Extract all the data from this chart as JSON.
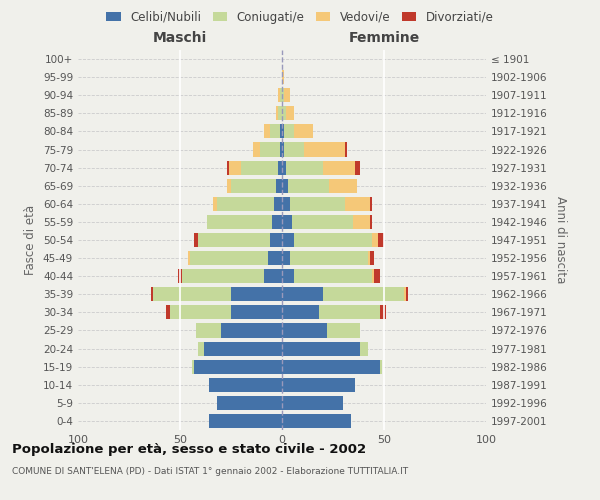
{
  "age_groups": [
    "0-4",
    "5-9",
    "10-14",
    "15-19",
    "20-24",
    "25-29",
    "30-34",
    "35-39",
    "40-44",
    "45-49",
    "50-54",
    "55-59",
    "60-64",
    "65-69",
    "70-74",
    "75-79",
    "80-84",
    "85-89",
    "90-94",
    "95-99",
    "100+"
  ],
  "birth_years": [
    "1997-2001",
    "1992-1996",
    "1987-1991",
    "1982-1986",
    "1977-1981",
    "1972-1976",
    "1967-1971",
    "1962-1966",
    "1957-1961",
    "1952-1956",
    "1947-1951",
    "1942-1946",
    "1937-1941",
    "1932-1936",
    "1927-1931",
    "1922-1926",
    "1917-1921",
    "1912-1916",
    "1907-1911",
    "1902-1906",
    "≤ 1901"
  ],
  "maschi": {
    "celibi": [
      36,
      32,
      36,
      43,
      38,
      30,
      25,
      25,
      9,
      7,
      6,
      5,
      4,
      3,
      2,
      1,
      1,
      0,
      0,
      0,
      0
    ],
    "coniugati": [
      0,
      0,
      0,
      1,
      3,
      12,
      30,
      38,
      40,
      38,
      35,
      32,
      28,
      22,
      18,
      10,
      5,
      2,
      1,
      0,
      0
    ],
    "vedovi": [
      0,
      0,
      0,
      0,
      0,
      0,
      0,
      0,
      0,
      1,
      0,
      0,
      2,
      2,
      6,
      3,
      3,
      1,
      1,
      0,
      0
    ],
    "divorziati": [
      0,
      0,
      0,
      0,
      0,
      0,
      2,
      1,
      2,
      0,
      2,
      0,
      0,
      0,
      1,
      0,
      0,
      0,
      0,
      0,
      0
    ]
  },
  "femmine": {
    "nubili": [
      34,
      30,
      36,
      48,
      38,
      22,
      18,
      20,
      6,
      4,
      6,
      5,
      4,
      3,
      2,
      1,
      1,
      0,
      0,
      0,
      0
    ],
    "coniugate": [
      0,
      0,
      0,
      1,
      4,
      16,
      30,
      40,
      38,
      38,
      38,
      30,
      27,
      20,
      18,
      10,
      5,
      2,
      1,
      0,
      0
    ],
    "vedove": [
      0,
      0,
      0,
      0,
      0,
      0,
      0,
      1,
      1,
      1,
      3,
      8,
      12,
      14,
      16,
      20,
      9,
      4,
      3,
      1,
      0
    ],
    "divorziate": [
      0,
      0,
      0,
      0,
      0,
      0,
      3,
      1,
      3,
      2,
      3,
      1,
      1,
      0,
      2,
      1,
      0,
      0,
      0,
      0,
      0
    ]
  },
  "colors": {
    "celibi_nubili": "#4472a8",
    "coniugati": "#c5d99a",
    "vedovi": "#f5c878",
    "divorziati": "#c0392b"
  },
  "xlim": 100,
  "title": "Popolazione per età, sesso e stato civile - 2002",
  "subtitle": "COMUNE DI SANT'ELENA (PD) - Dati ISTAT 1° gennaio 2002 - Elaborazione TUTTITALIA.IT",
  "ylabel_left": "Fasce di età",
  "ylabel_right": "Anni di nascita",
  "xlabel_left": "Maschi",
  "xlabel_right": "Femmine",
  "legend_labels": [
    "Celibi/Nubili",
    "Coniugati/e",
    "Vedovi/e",
    "Divorziati/e"
  ],
  "background_color": "#f0f0eb"
}
